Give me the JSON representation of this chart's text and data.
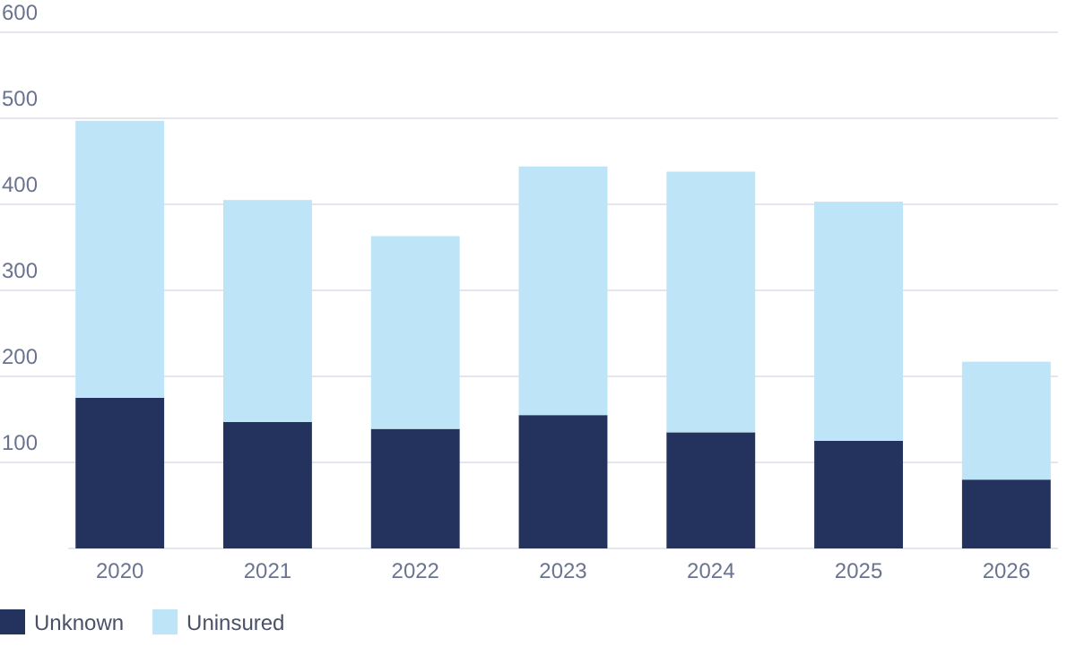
{
  "chart_data": {
    "type": "bar",
    "stacked": true,
    "categories": [
      "2020",
      "2021",
      "2022",
      "2023",
      "2024",
      "2025",
      "2026"
    ],
    "series": [
      {
        "name": "Unknown",
        "color": "#24335e",
        "values": [
          175,
          147,
          139,
          155,
          135,
          125,
          80
        ]
      },
      {
        "name": "Uninsured",
        "color": "#bde4f7",
        "values": [
          322,
          258,
          224,
          289,
          303,
          278,
          137
        ]
      }
    ],
    "ylim": [
      0,
      600
    ],
    "yticks": [
      100,
      200,
      300,
      400,
      500,
      600
    ],
    "grid": "y",
    "legend": "bottom left"
  }
}
